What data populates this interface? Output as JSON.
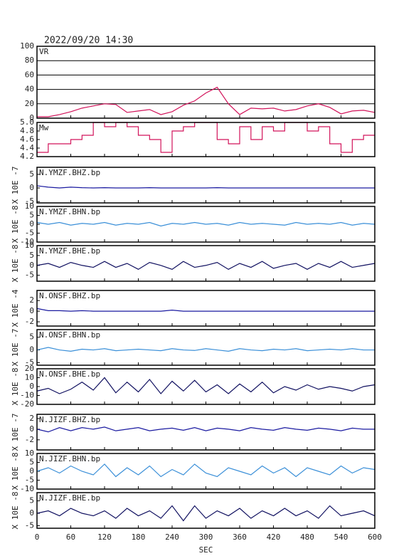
{
  "chart_data": [
    {
      "type": "line",
      "title": "2022/09/20 14:30",
      "label": "VR",
      "color": "#d2135a",
      "grid": true,
      "x": [
        0,
        20,
        40,
        60,
        80,
        100,
        120,
        140,
        160,
        180,
        200,
        220,
        240,
        260,
        280,
        300,
        320,
        340,
        360,
        380,
        400,
        420,
        440,
        460,
        480,
        500,
        520,
        540,
        560,
        580,
        600
      ],
      "values": [
        2,
        2,
        5,
        9,
        14,
        17,
        20,
        19,
        8,
        10,
        12,
        5,
        9,
        18,
        24,
        35,
        43,
        20,
        5,
        14,
        13,
        14,
        10,
        12,
        17,
        20,
        15,
        6,
        10,
        11,
        8
      ],
      "xlim": [
        0,
        600
      ],
      "xticks": [
        0,
        60,
        120,
        180,
        240,
        300,
        360,
        420,
        480,
        540,
        600
      ],
      "ylim": [
        0,
        100
      ],
      "yticks": [
        0,
        20,
        40,
        60,
        80,
        100
      ]
    },
    {
      "type": "line",
      "label": "Mw",
      "color": "#d2135a",
      "step": true,
      "x": [
        0,
        20,
        40,
        60,
        80,
        100,
        120,
        140,
        160,
        180,
        200,
        220,
        240,
        260,
        280,
        300,
        320,
        340,
        360,
        380,
        400,
        420,
        440,
        460,
        480,
        500,
        520,
        540,
        560,
        580,
        600
      ],
      "values": [
        4.3,
        4.5,
        4.5,
        4.6,
        4.7,
        5.0,
        4.9,
        5.0,
        4.9,
        4.7,
        4.6,
        4.3,
        4.8,
        4.9,
        5.0,
        5.0,
        4.6,
        4.5,
        4.9,
        4.6,
        4.9,
        4.8,
        5.0,
        5.0,
        4.8,
        4.9,
        4.5,
        4.3,
        4.6,
        4.7,
        4.7
      ],
      "xlim": [
        0,
        600
      ],
      "xticks": [
        0,
        60,
        120,
        180,
        240,
        300,
        360,
        420,
        480,
        540,
        600
      ],
      "ylim": [
        4.2,
        5.0
      ],
      "yticks": [
        4.2,
        4.4,
        4.6,
        4.8,
        {
          "value": 5,
          "label": "5.0"
        }
      ]
    },
    {
      "type": "line",
      "label": "N.YMZF.BHZ.bp",
      "ylabel": "X 10E -7",
      "color": "#1a1aa0",
      "x": [
        0,
        20,
        40,
        60,
        80,
        100,
        120,
        140,
        160,
        180,
        200,
        220,
        240,
        260,
        280,
        300,
        320,
        340,
        360,
        380,
        400,
        420,
        440,
        460,
        480,
        500,
        520,
        540,
        560,
        580,
        600
      ],
      "values": [
        0.8,
        0.3,
        0,
        0.3,
        0.1,
        0,
        0.1,
        0,
        0,
        0,
        0.1,
        0,
        0,
        0,
        0,
        0,
        0.1,
        0,
        0,
        0,
        0,
        0,
        0,
        0,
        0,
        0,
        0,
        0,
        0,
        0,
        0
      ],
      "xlim": [
        0,
        600
      ],
      "xticks": [
        0,
        60,
        120,
        180,
        240,
        300,
        360,
        420,
        480,
        540,
        600
      ],
      "ylim": [
        -5.5,
        7.6
      ],
      "yticks": [
        5,
        0,
        -5
      ]
    },
    {
      "type": "line",
      "label": "N.YMZF.BHN.bp",
      "ylabel": "X 10E -8",
      "color": "#3a8fd8",
      "x": [
        0,
        20,
        40,
        60,
        80,
        100,
        120,
        140,
        160,
        180,
        200,
        220,
        240,
        260,
        280,
        300,
        320,
        340,
        360,
        380,
        400,
        420,
        440,
        460,
        480,
        500,
        520,
        540,
        560,
        580,
        600
      ],
      "values": [
        1,
        0,
        1,
        -0.5,
        0.5,
        0,
        1,
        -0.5,
        0.5,
        0,
        1,
        -1,
        0.5,
        0,
        1,
        0,
        0.5,
        -0.5,
        1,
        0,
        0.5,
        0,
        -0.5,
        1,
        0,
        0.5,
        0,
        1,
        -0.5,
        0.5,
        0
      ],
      "xlim": [
        0,
        600
      ],
      "xticks": [
        0,
        60,
        120,
        180,
        240,
        300,
        360,
        420,
        480,
        540,
        600
      ],
      "ylim": [
        -10,
        10
      ],
      "yticks": [
        10,
        5,
        0,
        -5,
        -10
      ]
    },
    {
      "type": "line",
      "label": "N.YMZF.BHE.bp",
      "ylabel": "X 10E -8",
      "color": "#101060",
      "x": [
        0,
        20,
        40,
        60,
        80,
        100,
        120,
        140,
        160,
        180,
        200,
        220,
        240,
        260,
        280,
        300,
        320,
        340,
        360,
        380,
        400,
        420,
        440,
        460,
        480,
        500,
        520,
        540,
        560,
        580,
        600
      ],
      "values": [
        0,
        1,
        -1,
        1.5,
        0,
        -1,
        2,
        -1,
        1,
        -2,
        1.5,
        0,
        -2,
        2,
        -1,
        0,
        1.5,
        -2,
        1,
        -1,
        2,
        -1.5,
        0,
        1,
        -2,
        1,
        -1,
        2,
        -1,
        0,
        1
      ],
      "xlim": [
        0,
        600
      ],
      "xticks": [
        0,
        60,
        120,
        180,
        240,
        300,
        360,
        420,
        480,
        540,
        600
      ],
      "ylim": [
        -8,
        10
      ],
      "yticks": [
        10,
        5,
        0,
        -5
      ]
    },
    {
      "type": "line",
      "label": "N.ONSF.BHZ.bp",
      "ylabel": "X 10E -4",
      "color": "#1a1aa0",
      "x": [
        0,
        20,
        40,
        60,
        80,
        100,
        120,
        140,
        160,
        180,
        200,
        220,
        240,
        260,
        280,
        300,
        320,
        340,
        360,
        380,
        400,
        420,
        440,
        460,
        480,
        500,
        520,
        540,
        560,
        580,
        600
      ],
      "values": [
        0.5,
        0.1,
        0.1,
        0,
        0.1,
        0,
        0,
        0,
        0,
        0,
        0,
        0,
        0.2,
        0,
        0,
        0,
        0,
        0,
        0,
        0,
        0,
        0,
        0,
        0,
        0,
        0,
        0,
        0,
        0,
        0,
        0
      ],
      "xlim": [
        0,
        600
      ],
      "xticks": [
        0,
        60,
        120,
        180,
        240,
        300,
        360,
        420,
        480,
        540,
        600
      ],
      "ylim": [
        -2.8,
        3.9
      ],
      "yticks": [
        2,
        0,
        -2
      ]
    },
    {
      "type": "line",
      "label": "N.ONSF.BHN.bp",
      "ylabel": "X 10E -7",
      "color": "#3a8fd8",
      "x": [
        0,
        20,
        40,
        60,
        80,
        100,
        120,
        140,
        160,
        180,
        200,
        220,
        240,
        260,
        280,
        300,
        320,
        340,
        360,
        380,
        400,
        420,
        440,
        460,
        480,
        500,
        520,
        540,
        560,
        580,
        600
      ],
      "values": [
        0,
        1,
        0,
        -0.5,
        0.3,
        0,
        0.5,
        -0.3,
        0,
        0.3,
        0,
        -0.3,
        0.5,
        0,
        -0.2,
        0.5,
        0,
        -0.5,
        0.5,
        0,
        -0.3,
        0.3,
        0,
        0.5,
        -0.3,
        0,
        0.3,
        0,
        0.5,
        0,
        0
      ],
      "xlim": [
        0,
        600
      ],
      "xticks": [
        0,
        60,
        120,
        180,
        240,
        300,
        360,
        420,
        480,
        540,
        600
      ],
      "ylim": [
        -6,
        8
      ],
      "yticks": [
        5,
        0,
        -5
      ]
    },
    {
      "type": "line",
      "label": "N.ONSF.BHE.bp",
      "ylabel": "X 10E -8",
      "color": "#101060",
      "x": [
        0,
        20,
        40,
        60,
        80,
        100,
        120,
        140,
        160,
        180,
        200,
        220,
        240,
        260,
        280,
        300,
        320,
        340,
        360,
        380,
        400,
        420,
        440,
        460,
        480,
        500,
        520,
        540,
        560,
        580,
        600
      ],
      "values": [
        -5,
        -2,
        -8,
        -3,
        5,
        -4,
        10,
        -7,
        5,
        -6,
        8,
        -8,
        6,
        -5,
        7,
        -6,
        2,
        -8,
        3,
        -6,
        5,
        -7,
        0,
        -4,
        2,
        -3,
        0,
        -2,
        -5,
        0,
        2
      ],
      "xlim": [
        0,
        600
      ],
      "xticks": [
        0,
        60,
        120,
        180,
        240,
        300,
        360,
        420,
        480,
        540,
        600
      ],
      "ylim": [
        -20,
        20
      ],
      "yticks": [
        20,
        10,
        0,
        -10,
        -20
      ]
    },
    {
      "type": "line",
      "label": "N.JIZF.BHZ.bp",
      "ylabel": "X 10E -7",
      "color": "#1a1aa0",
      "x": [
        0,
        20,
        40,
        60,
        80,
        100,
        120,
        140,
        160,
        180,
        200,
        220,
        240,
        260,
        280,
        300,
        320,
        340,
        360,
        380,
        400,
        420,
        440,
        460,
        480,
        500,
        520,
        540,
        560,
        580,
        600
      ],
      "values": [
        0,
        -0.5,
        0.3,
        -0.3,
        0.3,
        0,
        0.4,
        -0.3,
        0,
        0.3,
        -0.3,
        0,
        0.2,
        -0.2,
        0.3,
        -0.3,
        0.2,
        0,
        -0.3,
        0.3,
        0,
        -0.2,
        0.3,
        0,
        -0.2,
        0.2,
        0,
        -0.3,
        0.2,
        0,
        0
      ],
      "xlim": [
        0,
        600
      ],
      "xticks": [
        0,
        60,
        120,
        180,
        240,
        300,
        360,
        420,
        480,
        540,
        600
      ],
      "ylim": [
        -3.9,
        2.8
      ],
      "yticks": [
        2,
        0,
        -2
      ]
    },
    {
      "type": "line",
      "label": "N.JIZF.BHN.bp",
      "ylabel": "X 10E -8",
      "color": "#3a8fd8",
      "x": [
        0,
        20,
        40,
        60,
        80,
        100,
        120,
        140,
        160,
        180,
        200,
        220,
        240,
        260,
        280,
        300,
        320,
        340,
        360,
        380,
        400,
        420,
        440,
        460,
        480,
        500,
        520,
        540,
        560,
        580,
        600
      ],
      "values": [
        0,
        2,
        -1,
        3,
        0,
        -2,
        4,
        -3,
        2,
        -2,
        3,
        -3,
        1,
        -2,
        4,
        -1,
        -3,
        2,
        0,
        -2,
        3,
        -1,
        2,
        -3,
        2,
        0,
        -2,
        3,
        -1,
        2,
        1
      ],
      "xlim": [
        0,
        600
      ],
      "xticks": [
        0,
        60,
        120,
        180,
        240,
        300,
        360,
        420,
        480,
        540,
        600
      ],
      "ylim": [
        -10,
        10
      ],
      "yticks": [
        10,
        5,
        0,
        -5,
        -10
      ]
    },
    {
      "type": "line",
      "label": "N.JIZF.BHE.bp",
      "ylabel": "X 10E -8",
      "color": "#101060",
      "x": [
        0,
        20,
        40,
        60,
        80,
        100,
        120,
        140,
        160,
        180,
        200,
        220,
        240,
        260,
        280,
        300,
        320,
        340,
        360,
        380,
        400,
        420,
        440,
        460,
        480,
        500,
        520,
        540,
        560,
        580,
        600
      ],
      "values": [
        0,
        1,
        -1,
        2,
        0,
        -1,
        1,
        -2,
        2,
        -1,
        1,
        -2,
        3,
        -3,
        3,
        -2,
        1,
        -1,
        2,
        -2,
        1,
        -1,
        2,
        -1,
        1,
        -2,
        3,
        -1,
        0,
        1,
        -1
      ],
      "xlim": [
        0,
        600
      ],
      "xticks": [
        0,
        60,
        120,
        180,
        240,
        300,
        360,
        420,
        480,
        540,
        600
      ],
      "ylim": [
        -6,
        8.3
      ],
      "yticks": [
        5,
        0,
        -5
      ],
      "xlabel": "SEC"
    }
  ]
}
